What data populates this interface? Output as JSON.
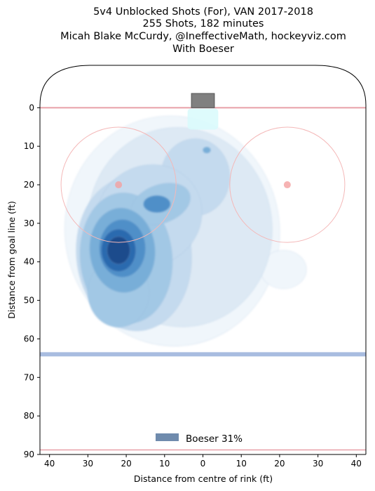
{
  "chart_data": {
    "type": "heatmap",
    "title_lines": [
      "5v4 Unblocked Shots (For), VAN 2017-2018",
      "255 Shots, 182 minutes",
      "Micah Blake McCurdy, @IneffectiveMath, hockeyviz.com",
      "With Boeser"
    ],
    "xlabel": "Distance from centre of rink (ft)",
    "ylabel": "Distance from goal line (ft)",
    "x_ticks": [
      {
        "value": -40,
        "label": "40"
      },
      {
        "value": -30,
        "label": "30"
      },
      {
        "value": -20,
        "label": "20"
      },
      {
        "value": -10,
        "label": "10"
      },
      {
        "value": 0,
        "label": "0"
      },
      {
        "value": 10,
        "label": "10"
      },
      {
        "value": 20,
        "label": "20"
      },
      {
        "value": 30,
        "label": "30"
      },
      {
        "value": 40,
        "label": "40"
      }
    ],
    "y_ticks": [
      0,
      10,
      20,
      30,
      40,
      50,
      60,
      70,
      80,
      90
    ],
    "xlim": [
      -42.5,
      42.5
    ],
    "ylim": [
      90,
      -11
    ],
    "legend": {
      "label": "Boeser 31%",
      "color": "#6f8bad",
      "placement": "bottom-center"
    },
    "density_peaks": [
      {
        "x": -22,
        "y": 37,
        "weight": 1.0
      },
      {
        "x": -12,
        "y": 25,
        "weight": 0.45
      },
      {
        "x": 1,
        "y": 11,
        "weight": 0.25
      },
      {
        "x": -24,
        "y": 48,
        "weight": 0.3
      },
      {
        "x": 23,
        "y": 42,
        "weight": 0.08
      }
    ],
    "rink": {
      "goal_line_y": 0,
      "blue_line_y": 64,
      "end_line_y": 89,
      "faceoff_circles": [
        {
          "x": -22,
          "y": 20,
          "r": 15
        },
        {
          "x": 22,
          "y": 20,
          "r": 15
        }
      ],
      "colors": {
        "goal_line": "#e8a0a8",
        "blue_line": "#a8bce0",
        "circle": "#f4b8b8",
        "dot": "#f4a0a0",
        "net": "#808080",
        "crease": "#d8fafc"
      }
    },
    "palette": [
      "#f0f6fb",
      "#dde9f4",
      "#c4daee",
      "#a2c8e5",
      "#78aed8",
      "#4f8fc8",
      "#2b6aaf",
      "#1a4b8c"
    ]
  }
}
